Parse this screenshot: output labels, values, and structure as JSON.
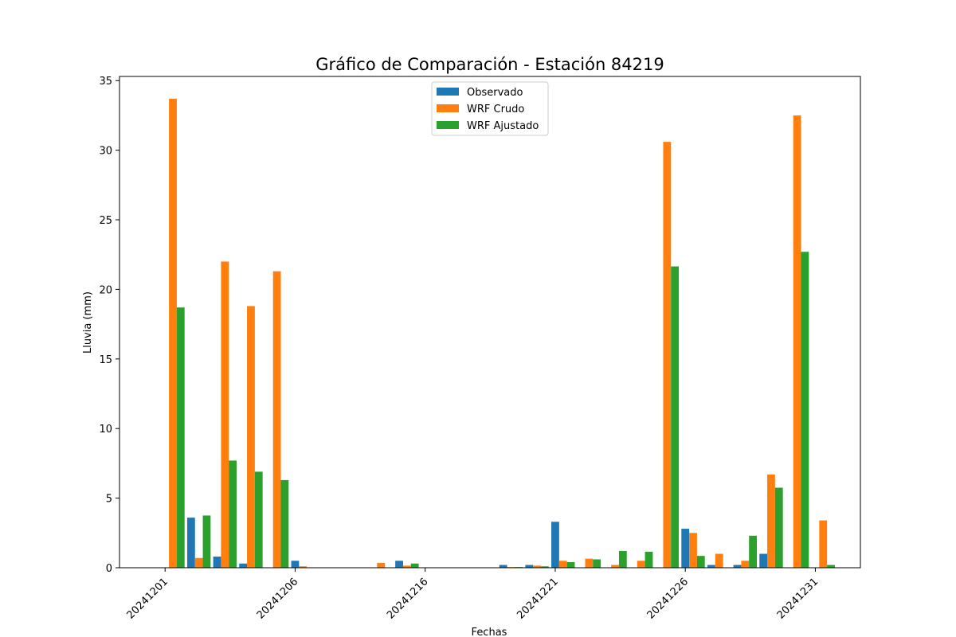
{
  "chart_data": {
    "type": "bar",
    "title": "Gráfico de Comparación - Estación 84219",
    "xlabel": "Fechas",
    "ylabel": "Lluvia (mm)",
    "ylim": [
      0,
      35.3
    ],
    "yticks": [
      0,
      5,
      10,
      15,
      20,
      25,
      30,
      35
    ],
    "grid": false,
    "legend_position": "top-center",
    "categories": [
      "20241201",
      "20241202",
      "20241203",
      "20241204",
      "20241205",
      "20241206",
      "20241212",
      "20241213",
      "20241214",
      "20241215",
      "20241216",
      "20241217",
      "20241218",
      "20241219",
      "20241220",
      "20241221",
      "20241222",
      "20241223",
      "20241224",
      "20241225",
      "20241226",
      "20241227",
      "20241228",
      "20241229",
      "20241230",
      "20241231",
      "20250101"
    ],
    "xtick_labels": [
      "20241201",
      "20241206",
      "20241216",
      "20241221",
      "20241226",
      "20241231"
    ],
    "series": [
      {
        "name": "Observado",
        "color": "#1f77b4",
        "values": [
          0,
          3.6,
          0.8,
          0.3,
          0,
          0.5,
          0,
          0,
          0,
          0.5,
          0,
          0,
          0,
          0.2,
          0.2,
          3.3,
          0,
          0,
          0,
          0,
          2.8,
          0.2,
          0.2,
          1.0,
          0,
          0,
          0
        ]
      },
      {
        "name": "WRF Crudo",
        "color": "#ff7f0e",
        "values": [
          33.7,
          0.7,
          22.0,
          18.8,
          21.3,
          0.1,
          0,
          0,
          0.35,
          0.15,
          0,
          0,
          0,
          0.05,
          0.15,
          0.5,
          0.65,
          0.2,
          0.5,
          30.6,
          2.5,
          1.0,
          0.5,
          6.7,
          32.5,
          3.4,
          0
        ]
      },
      {
        "name": "WRF Ajustado",
        "color": "#2ca02c",
        "values": [
          18.7,
          3.75,
          7.7,
          6.9,
          6.3,
          0,
          0,
          0,
          0,
          0.3,
          0,
          0,
          0,
          0.05,
          0.1,
          0.4,
          0.6,
          1.2,
          1.15,
          21.65,
          0.85,
          0,
          2.3,
          5.75,
          22.7,
          0.2,
          0
        ]
      }
    ]
  }
}
